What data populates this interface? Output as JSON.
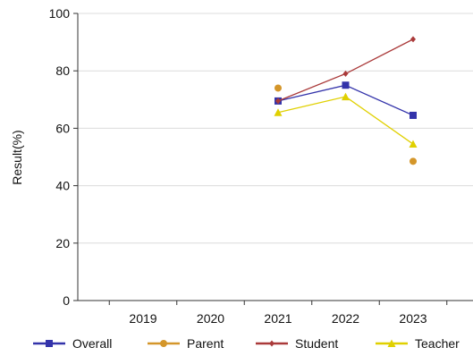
{
  "chart_data": {
    "type": "line",
    "title": "",
    "xlabel": "",
    "ylabel": "Result(%)",
    "categories": [
      "2019",
      "2020",
      "2021",
      "2022",
      "2023"
    ],
    "ylim": [
      0,
      100
    ],
    "yticks": [
      0,
      20,
      40,
      60,
      80,
      100
    ],
    "grid": true,
    "legend_position": "bottom",
    "series": [
      {
        "name": "Overall",
        "color": "#3333aa",
        "marker": "square",
        "values": [
          null,
          null,
          69.5,
          75,
          64.5
        ]
      },
      {
        "name": "Parent",
        "color": "#d4962a",
        "marker": "circle",
        "line": false,
        "values": [
          null,
          null,
          74,
          null,
          48.5
        ]
      },
      {
        "name": "Student",
        "color": "#aa3a3a",
        "marker": "diamond",
        "values": [
          null,
          null,
          69.5,
          79,
          91
        ]
      },
      {
        "name": "Teacher",
        "color": "#e0d000",
        "marker": "triangle",
        "values": [
          null,
          null,
          65.5,
          71,
          54.5
        ]
      }
    ]
  }
}
